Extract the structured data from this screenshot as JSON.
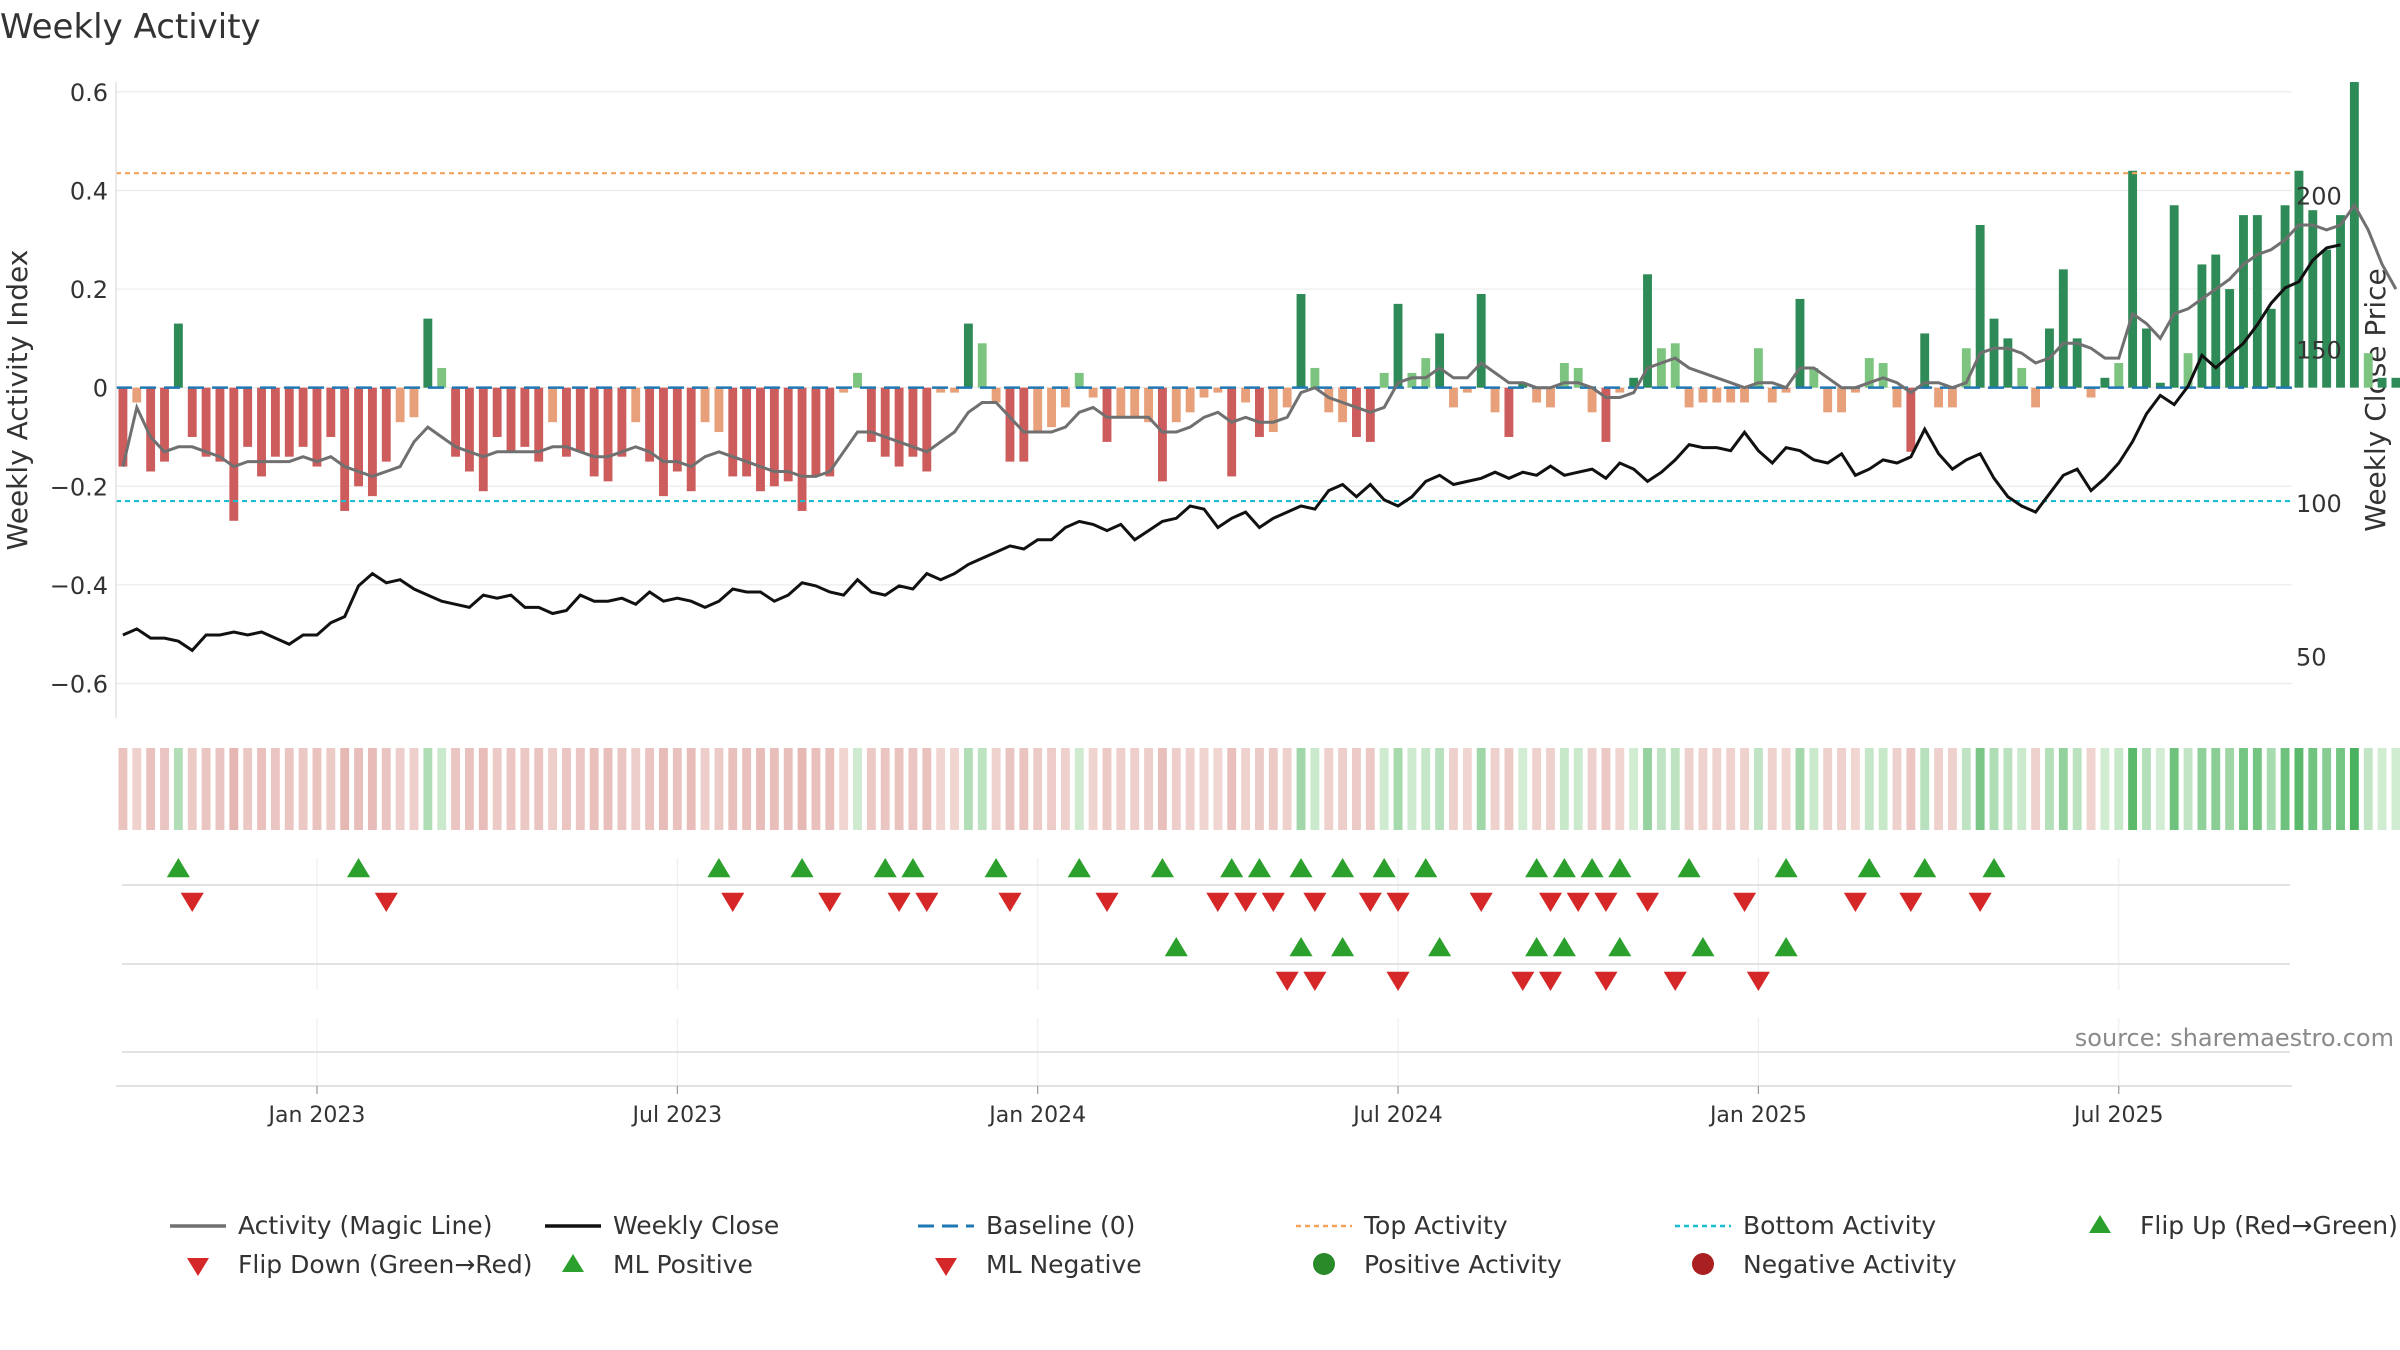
{
  "chart_data": {
    "type": "bar",
    "title": "Weekly Activity",
    "ylabel_left": "Weekly Activity Index",
    "ylabel_right": "Weekly Close Price",
    "xlabel": "",
    "left_axis": {
      "ylim": [
        -0.67,
        0.62
      ],
      "ticks": [
        0.6,
        0.4,
        0.2,
        0,
        -0.2,
        -0.4,
        -0.6
      ],
      "tick_labels": [
        "0.6",
        "0.4",
        "0.2",
        "0",
        "−0.2",
        "−0.4",
        "−0.6"
      ]
    },
    "right_axis": {
      "ylim": [
        30,
        237
      ],
      "ticks": [
        200,
        150,
        100,
        50
      ],
      "tick_labels": [
        "200",
        "150",
        "100",
        "50"
      ]
    },
    "x_ticks": [
      "Jan 2023",
      "Jul 2023",
      "Jan 2024",
      "Jul 2024",
      "Jan 2025",
      "Jul 2025"
    ],
    "x_tick_positions": [
      14.5,
      40.5,
      66.5,
      92.5,
      118.5,
      144.5
    ],
    "x_range": [
      0,
      157
    ],
    "activity": [
      -0.16,
      -0.03,
      -0.17,
      -0.15,
      0.13,
      -0.1,
      -0.14,
      -0.15,
      -0.27,
      -0.12,
      -0.18,
      -0.14,
      -0.14,
      -0.12,
      -0.16,
      -0.1,
      -0.25,
      -0.2,
      -0.22,
      -0.15,
      -0.07,
      -0.06,
      0.14,
      0.04,
      -0.14,
      -0.17,
      -0.21,
      -0.1,
      -0.13,
      -0.12,
      -0.15,
      -0.07,
      -0.14,
      -0.13,
      -0.18,
      -0.19,
      -0.14,
      -0.07,
      -0.15,
      -0.22,
      -0.17,
      -0.21,
      -0.07,
      -0.09,
      -0.18,
      -0.18,
      -0.21,
      -0.2,
      -0.19,
      -0.25,
      -0.18,
      -0.18,
      -0.01,
      0.03,
      -0.11,
      -0.14,
      -0.16,
      -0.14,
      -0.17,
      -0.01,
      -0.01,
      0.13,
      0.09,
      -0.03,
      -0.15,
      -0.15,
      -0.09,
      -0.08,
      -0.04,
      0.03,
      -0.02,
      -0.11,
      -0.06,
      -0.06,
      -0.07,
      -0.19,
      -0.07,
      -0.05,
      -0.02,
      -0.01,
      -0.18,
      -0.03,
      -0.1,
      -0.09,
      -0.04,
      0.19,
      0.04,
      -0.05,
      -0.07,
      -0.1,
      -0.11,
      0.03,
      0.17,
      0.03,
      0.06,
      0.11,
      -0.04,
      -0.01,
      0.19,
      -0.05,
      -0.1,
      0.01,
      -0.03,
      -0.04,
      0.05,
      0.04,
      -0.05,
      -0.11,
      -0.01,
      0.02,
      0.23,
      0.08,
      0.09,
      -0.04,
      -0.03,
      -0.03,
      -0.03,
      -0.03,
      0.08,
      -0.03,
      -0.01,
      0.18,
      0.04,
      -0.05,
      -0.05,
      -0.01,
      0.06,
      0.05,
      -0.04,
      -0.13,
      0.11,
      -0.04,
      -0.04,
      0.08,
      0.33,
      0.14,
      0.1,
      0.04,
      -0.04,
      0.12,
      0.24,
      0.1,
      -0.02,
      0.02,
      0.05,
      0.44,
      0.12,
      0.01,
      0.37,
      0.07,
      0.25,
      0.27,
      0.2,
      0.35,
      0.35,
      0.16,
      0.37,
      0.44,
      0.36,
      0.28,
      0.35,
      0.62,
      0.07,
      0.02,
      0.02
    ],
    "magic_line": [
      -0.16,
      -0.04,
      -0.1,
      -0.13,
      -0.12,
      -0.12,
      -0.13,
      -0.14,
      -0.16,
      -0.15,
      -0.15,
      -0.15,
      -0.15,
      -0.14,
      -0.15,
      -0.14,
      -0.16,
      -0.17,
      -0.18,
      -0.17,
      -0.16,
      -0.11,
      -0.08,
      -0.1,
      -0.12,
      -0.13,
      -0.14,
      -0.13,
      -0.13,
      -0.13,
      -0.13,
      -0.12,
      -0.12,
      -0.13,
      -0.14,
      -0.14,
      -0.13,
      -0.12,
      -0.13,
      -0.15,
      -0.15,
      -0.16,
      -0.14,
      -0.13,
      -0.14,
      -0.15,
      -0.16,
      -0.17,
      -0.17,
      -0.18,
      -0.18,
      -0.17,
      -0.13,
      -0.09,
      -0.09,
      -0.1,
      -0.11,
      -0.12,
      -0.13,
      -0.11,
      -0.09,
      -0.05,
      -0.03,
      -0.03,
      -0.06,
      -0.09,
      -0.09,
      -0.09,
      -0.08,
      -0.05,
      -0.04,
      -0.06,
      -0.06,
      -0.06,
      -0.06,
      -0.09,
      -0.09,
      -0.08,
      -0.06,
      -0.05,
      -0.07,
      -0.06,
      -0.07,
      -0.07,
      -0.06,
      -0.01,
      0.0,
      -0.02,
      -0.03,
      -0.04,
      -0.05,
      -0.04,
      0.01,
      0.02,
      0.02,
      0.04,
      0.02,
      0.02,
      0.05,
      0.03,
      0.01,
      0.01,
      0.0,
      0.0,
      0.01,
      0.01,
      0.0,
      -0.02,
      -0.02,
      -0.01,
      0.04,
      0.05,
      0.06,
      0.04,
      0.03,
      0.02,
      0.01,
      0.0,
      0.01,
      0.01,
      0.0,
      0.04,
      0.04,
      0.02,
      0.0,
      0.0,
      0.01,
      0.02,
      0.01,
      -0.01,
      0.01,
      0.01,
      0.0,
      0.01,
      0.07,
      0.08,
      0.08,
      0.07,
      0.05,
      0.06,
      0.09,
      0.09,
      0.08,
      0.06,
      0.06,
      0.15,
      0.13,
      0.1,
      0.15,
      0.16,
      0.18,
      0.2,
      0.22,
      0.25,
      0.27,
      0.28,
      0.3,
      0.33,
      0.33,
      0.32,
      0.33,
      0.37,
      0.32,
      0.25,
      0.2
    ],
    "weekly_close": [
      57,
      59,
      56,
      56,
      55,
      52,
      57,
      57,
      58,
      57,
      58,
      56,
      54,
      57,
      57,
      61,
      63,
      73,
      77,
      74,
      75,
      72,
      70,
      68,
      67,
      66,
      70,
      69,
      70,
      66,
      66,
      64,
      65,
      70,
      68,
      68,
      69,
      67,
      71,
      68,
      69,
      68,
      66,
      68,
      72,
      71,
      71,
      68,
      70,
      74,
      73,
      71,
      70,
      75,
      71,
      70,
      73,
      72,
      77,
      75,
      77,
      80,
      82,
      84,
      86,
      85,
      88,
      88,
      92,
      94,
      93,
      91,
      93,
      88,
      91,
      94,
      95,
      99,
      98,
      92,
      95,
      97,
      92,
      95,
      97,
      99,
      98,
      104,
      106,
      102,
      106,
      101,
      99,
      102,
      107,
      109,
      106,
      107,
      108,
      110,
      108,
      110,
      109,
      112,
      109,
      110,
      111,
      108,
      113,
      111,
      107,
      110,
      114,
      119,
      118,
      118,
      117,
      123,
      117,
      113,
      118,
      117,
      114,
      113,
      116,
      109,
      111,
      114,
      113,
      115,
      124,
      116,
      111,
      114,
      116,
      108,
      102,
      99,
      97,
      103,
      109,
      111,
      104,
      108,
      113,
      120,
      129,
      135,
      132,
      138,
      148,
      144,
      148,
      152,
      158,
      165,
      170,
      172,
      179,
      183,
      184
    ],
    "baseline": 0,
    "top_activity": 0.435,
    "bottom_activity": -0.23,
    "heat_strip": "per-week activity color strip (red = negative, green = positive)",
    "flip_up_weeks": [
      4,
      17,
      43,
      49,
      55,
      57,
      63,
      69,
      75,
      80,
      82,
      85,
      88,
      91,
      94,
      102,
      104,
      106,
      108,
      113,
      120,
      126,
      130,
      135
    ],
    "flip_down_weeks": [
      5,
      19,
      44,
      51,
      56,
      58,
      64,
      71,
      79,
      81,
      83,
      86,
      90,
      92,
      98,
      103,
      105,
      107,
      110,
      117,
      125,
      129,
      134
    ],
    "ml_positive_weeks": [
      76,
      85,
      88,
      95,
      102,
      104,
      108,
      114,
      120
    ],
    "ml_negative_weeks": [
      84,
      86,
      92,
      101,
      103,
      107,
      112,
      118
    ],
    "source": "source: sharemaestro.com",
    "legend": [
      {
        "label": "Activity (Magic Line)",
        "symbol": "line",
        "color": "#707070"
      },
      {
        "label": "Weekly Close",
        "symbol": "line",
        "color": "#111111"
      },
      {
        "label": "Baseline (0)",
        "symbol": "dash",
        "color": "#1f77b4"
      },
      {
        "label": "Top Activity",
        "symbol": "dot",
        "color": "#f4a259"
      },
      {
        "label": "Bottom Activity",
        "symbol": "dot",
        "color": "#17becf"
      },
      {
        "label": "Flip Up (Red→Green)",
        "symbol": "tri-up",
        "color": "#2ca02c"
      },
      {
        "label": "Flip Down (Green→Red)",
        "symbol": "tri-down",
        "color": "#d62728"
      },
      {
        "label": "ML Positive",
        "symbol": "tri-up",
        "color": "#2ca02c"
      },
      {
        "label": "ML Negative",
        "symbol": "tri-down",
        "color": "#d62728"
      },
      {
        "label": "Positive Activity",
        "symbol": "circle",
        "color": "#2a8a2a"
      },
      {
        "label": "Negative Activity",
        "symbol": "circle",
        "color": "#aa1f1f"
      }
    ]
  }
}
